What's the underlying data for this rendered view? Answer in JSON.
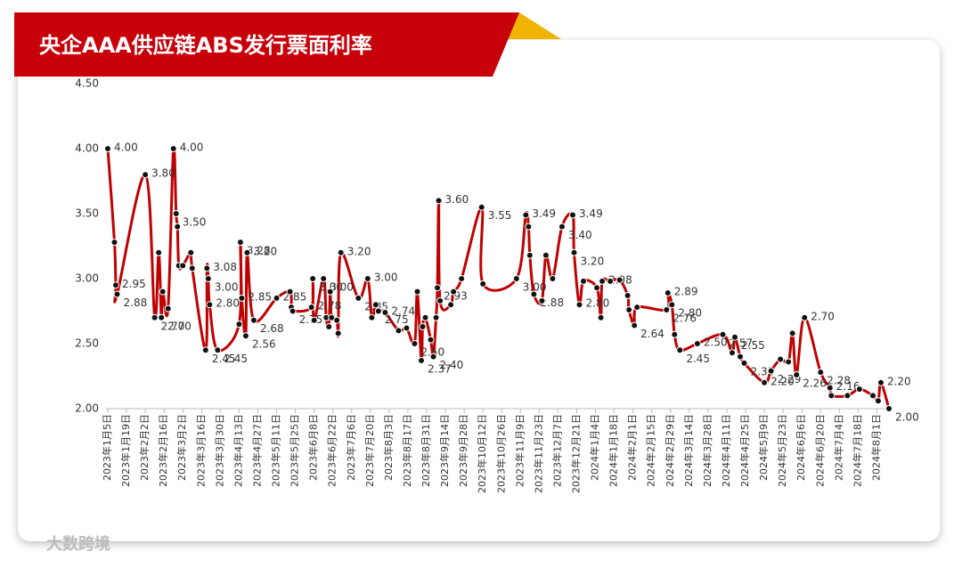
{
  "chart_data": {
    "type": "line",
    "title": "央企AAA供应链ABS发行票面利率",
    "watermark": "大数跨境",
    "xlim": [
      "2023-01-05",
      "2024-08-10"
    ],
    "xticks": [
      {
        "value": "2023-01-05",
        "label": "2023年1月5日"
      },
      {
        "value": "2023-01-19",
        "label": "2023年1月19日"
      },
      {
        "value": "2023-02-02",
        "label": "2023年2月2日"
      },
      {
        "value": "2023-02-16",
        "label": "2023年2月16日"
      },
      {
        "value": "2023-03-02",
        "label": "2023年3月2日"
      },
      {
        "value": "2023-03-16",
        "label": "2023年3月16日"
      },
      {
        "value": "2023-03-30",
        "label": "2023年3月30日"
      },
      {
        "value": "2023-04-13",
        "label": "2023年4月13日"
      },
      {
        "value": "2023-04-27",
        "label": "2023年4月27日"
      },
      {
        "value": "2023-05-11",
        "label": "2023年5月11日"
      },
      {
        "value": "2023-05-25",
        "label": "2023年5月25日"
      },
      {
        "value": "2023-06-08",
        "label": "2023年6月8日"
      },
      {
        "value": "2023-06-22",
        "label": "2023年6月22日"
      },
      {
        "value": "2023-07-06",
        "label": "2023年7月6日"
      },
      {
        "value": "2023-07-20",
        "label": "2023年7月20日"
      },
      {
        "value": "2023-08-03",
        "label": "2023年8月3日"
      },
      {
        "value": "2023-08-17",
        "label": "2023年8月17日"
      },
      {
        "value": "2023-08-31",
        "label": "2023年8月31日"
      },
      {
        "value": "2023-09-14",
        "label": "2023年9月14日"
      },
      {
        "value": "2023-09-28",
        "label": "2023年9月28日"
      },
      {
        "value": "2023-10-12",
        "label": "2023年10月12日"
      },
      {
        "value": "2023-10-26",
        "label": "2023年10月26日"
      },
      {
        "value": "2023-11-09",
        "label": "2023年11月9日"
      },
      {
        "value": "2023-11-23",
        "label": "2023年11月23日"
      },
      {
        "value": "2023-12-07",
        "label": "2023年12月7日"
      },
      {
        "value": "2023-12-21",
        "label": "2023年12月21日"
      },
      {
        "value": "2024-01-04",
        "label": "2024年1月4日"
      },
      {
        "value": "2024-01-18",
        "label": "2024年1月18日"
      },
      {
        "value": "2024-02-01",
        "label": "2024年2月1日"
      },
      {
        "value": "2024-02-15",
        "label": "2024年2月15日"
      },
      {
        "value": "2024-02-29",
        "label": "2024年2月29日"
      },
      {
        "value": "2024-03-14",
        "label": "2024年3月14日"
      },
      {
        "value": "2024-03-28",
        "label": "2024年3月28日"
      },
      {
        "value": "2024-04-11",
        "label": "2024年4月11日"
      },
      {
        "value": "2024-04-25",
        "label": "2024年4月25日"
      },
      {
        "value": "2024-05-09",
        "label": "2024年5月9日"
      },
      {
        "value": "2024-05-23",
        "label": "2024年5月23日"
      },
      {
        "value": "2024-06-06",
        "label": "2024年6月6日"
      },
      {
        "value": "2024-06-20",
        "label": "2024年6月20日"
      },
      {
        "value": "2024-07-04",
        "label": "2024年7月4日"
      },
      {
        "value": "2024-07-18",
        "label": "2024年7月18日"
      },
      {
        "value": "2024-08-01",
        "label": "2024年8月1日"
      }
    ],
    "ylim": [
      2,
      4.5
    ],
    "yticks": [
      {
        "value": 2,
        "label": "2.00"
      },
      {
        "value": 2.5,
        "label": "2.50"
      },
      {
        "value": 3,
        "label": "3.00"
      },
      {
        "value": 3.5,
        "label": "3.50"
      },
      {
        "value": 4,
        "label": "4.00"
      },
      {
        "value": 4.5,
        "label": "4.50"
      }
    ],
    "color": "#c00000",
    "marker_color": "#111111",
    "x": [
      "2023-01-05",
      "2023-01-10",
      "2023-01-11",
      "2023-01-12",
      "2023-02-02",
      "2023-02-09",
      "2023-02-12",
      "2023-02-14",
      "2023-02-15",
      "2023-02-19",
      "2023-02-23",
      "2023-02-25",
      "2023-02-26",
      "2023-02-27",
      "2023-03-02",
      "2023-03-08",
      "2023-03-09",
      "2023-03-19",
      "2023-03-20",
      "2023-03-21",
      "2023-03-22",
      "2023-03-28",
      "2023-04-13",
      "2023-04-14",
      "2023-04-15",
      "2023-04-18",
      "2023-04-19",
      "2023-04-24",
      "2023-05-11",
      "2023-05-21",
      "2023-05-22",
      "2023-05-23",
      "2023-06-06",
      "2023-06-07",
      "2023-06-08",
      "2023-06-15",
      "2023-06-17",
      "2023-06-19",
      "2023-06-20",
      "2023-06-21",
      "2023-06-25",
      "2023-06-26",
      "2023-06-28",
      "2023-07-11",
      "2023-07-18",
      "2023-07-21",
      "2023-07-24",
      "2023-07-26",
      "2023-07-31",
      "2023-08-10",
      "2023-08-16",
      "2023-08-22",
      "2023-08-24",
      "2023-08-27",
      "2023-08-28",
      "2023-08-30",
      "2023-09-03",
      "2023-09-05",
      "2023-09-07",
      "2023-09-08",
      "2023-09-09",
      "2023-09-10",
      "2023-09-18",
      "2023-09-20",
      "2023-09-26",
      "2023-10-11",
      "2023-10-12",
      "2023-11-06",
      "2023-11-13",
      "2023-11-15",
      "2023-11-16",
      "2023-11-19",
      "2023-11-25",
      "2023-11-28",
      "2023-12-03",
      "2023-12-10",
      "2023-12-18",
      "2023-12-19",
      "2023-12-23",
      "2023-12-26",
      "2024-01-05",
      "2024-01-08",
      "2024-01-09",
      "2024-01-15",
      "2024-01-22",
      "2024-01-28",
      "2024-01-29",
      "2024-02-02",
      "2024-02-04",
      "2024-02-26",
      "2024-02-27",
      "2024-03-01",
      "2024-03-03",
      "2024-03-07",
      "2024-03-20",
      "2024-04-08",
      "2024-04-15",
      "2024-04-17",
      "2024-04-21",
      "2024-04-24",
      "2024-05-09",
      "2024-05-14",
      "2024-05-21",
      "2024-05-27",
      "2024-05-30",
      "2024-06-02",
      "2024-06-08",
      "2024-06-20",
      "2024-06-27",
      "2024-06-28",
      "2024-07-10",
      "2024-07-19",
      "2024-07-29",
      "2024-08-02",
      "2024-08-04",
      "2024-08-10"
    ],
    "values": [
      4.0,
      3.28,
      2.95,
      2.88,
      3.8,
      2.7,
      3.2,
      2.7,
      2.9,
      2.77,
      4.0,
      3.5,
      3.4,
      3.1,
      3.1,
      3.2,
      3.08,
      2.45,
      3.08,
      3.0,
      2.8,
      2.45,
      2.65,
      3.28,
      2.85,
      2.56,
      3.2,
      2.68,
      2.85,
      2.9,
      2.78,
      2.75,
      2.78,
      3.0,
      2.68,
      3.0,
      2.7,
      2.63,
      2.9,
      2.7,
      2.68,
      2.58,
      3.2,
      2.85,
      3.0,
      2.7,
      2.8,
      2.75,
      2.74,
      2.6,
      2.62,
      2.5,
      2.9,
      2.37,
      2.63,
      2.7,
      2.53,
      2.4,
      2.7,
      2.93,
      3.6,
      2.83,
      2.8,
      2.9,
      3.0,
      3.55,
      2.96,
      3.0,
      3.49,
      3.4,
      3.18,
      2.88,
      2.83,
      3.18,
      3.0,
      3.4,
      3.49,
      3.2,
      2.8,
      2.98,
      2.93,
      2.7,
      2.98,
      2.98,
      2.99,
      2.87,
      2.76,
      2.64,
      2.78,
      2.76,
      2.89,
      2.8,
      2.57,
      2.45,
      2.5,
      2.57,
      2.43,
      2.55,
      2.4,
      2.35,
      2.2,
      2.29,
      2.38,
      2.36,
      2.58,
      2.26,
      2.7,
      2.28,
      2.16,
      2.1,
      2.1,
      2.15,
      2.1,
      2.06,
      2.2,
      2.0
    ],
    "value_labels": [
      "4.00",
      null,
      "2.95",
      "2.88",
      "3.80",
      "2.70",
      null,
      "2.70",
      null,
      null,
      "4.00",
      "3.50",
      null,
      null,
      null,
      null,
      null,
      "2.45",
      "3.08",
      "3.00",
      "2.80",
      "2.45",
      null,
      "3.28",
      "2.85",
      "2.56",
      "3.20",
      "2.68",
      "2.85",
      null,
      null,
      "2.75",
      "2.78",
      "3.00",
      null,
      "3.00",
      null,
      null,
      null,
      null,
      null,
      null,
      "3.20",
      "2.85",
      "3.00",
      null,
      null,
      "2.75",
      "2.74",
      null,
      null,
      "2.50",
      null,
      "2.37",
      null,
      null,
      null,
      "2.40",
      null,
      "2.93",
      "3.60",
      null,
      null,
      null,
      null,
      "3.55",
      null,
      "3.00",
      "3.49",
      null,
      null,
      "2.88",
      null,
      null,
      null,
      "3.40",
      "3.49",
      "3.20",
      "2.80",
      null,
      null,
      null,
      "2.98",
      null,
      null,
      null,
      null,
      "2.64",
      null,
      "2.76",
      "2.89",
      "2.80",
      null,
      "2.45",
      "2.50",
      "2.57",
      null,
      "2.55",
      null,
      "2.35",
      "2.20",
      "2.29",
      null,
      null,
      null,
      "2.26",
      "2.70",
      "2.28",
      "2.16",
      null,
      null,
      null,
      null,
      null,
      "2.20",
      "2.00"
    ]
  }
}
